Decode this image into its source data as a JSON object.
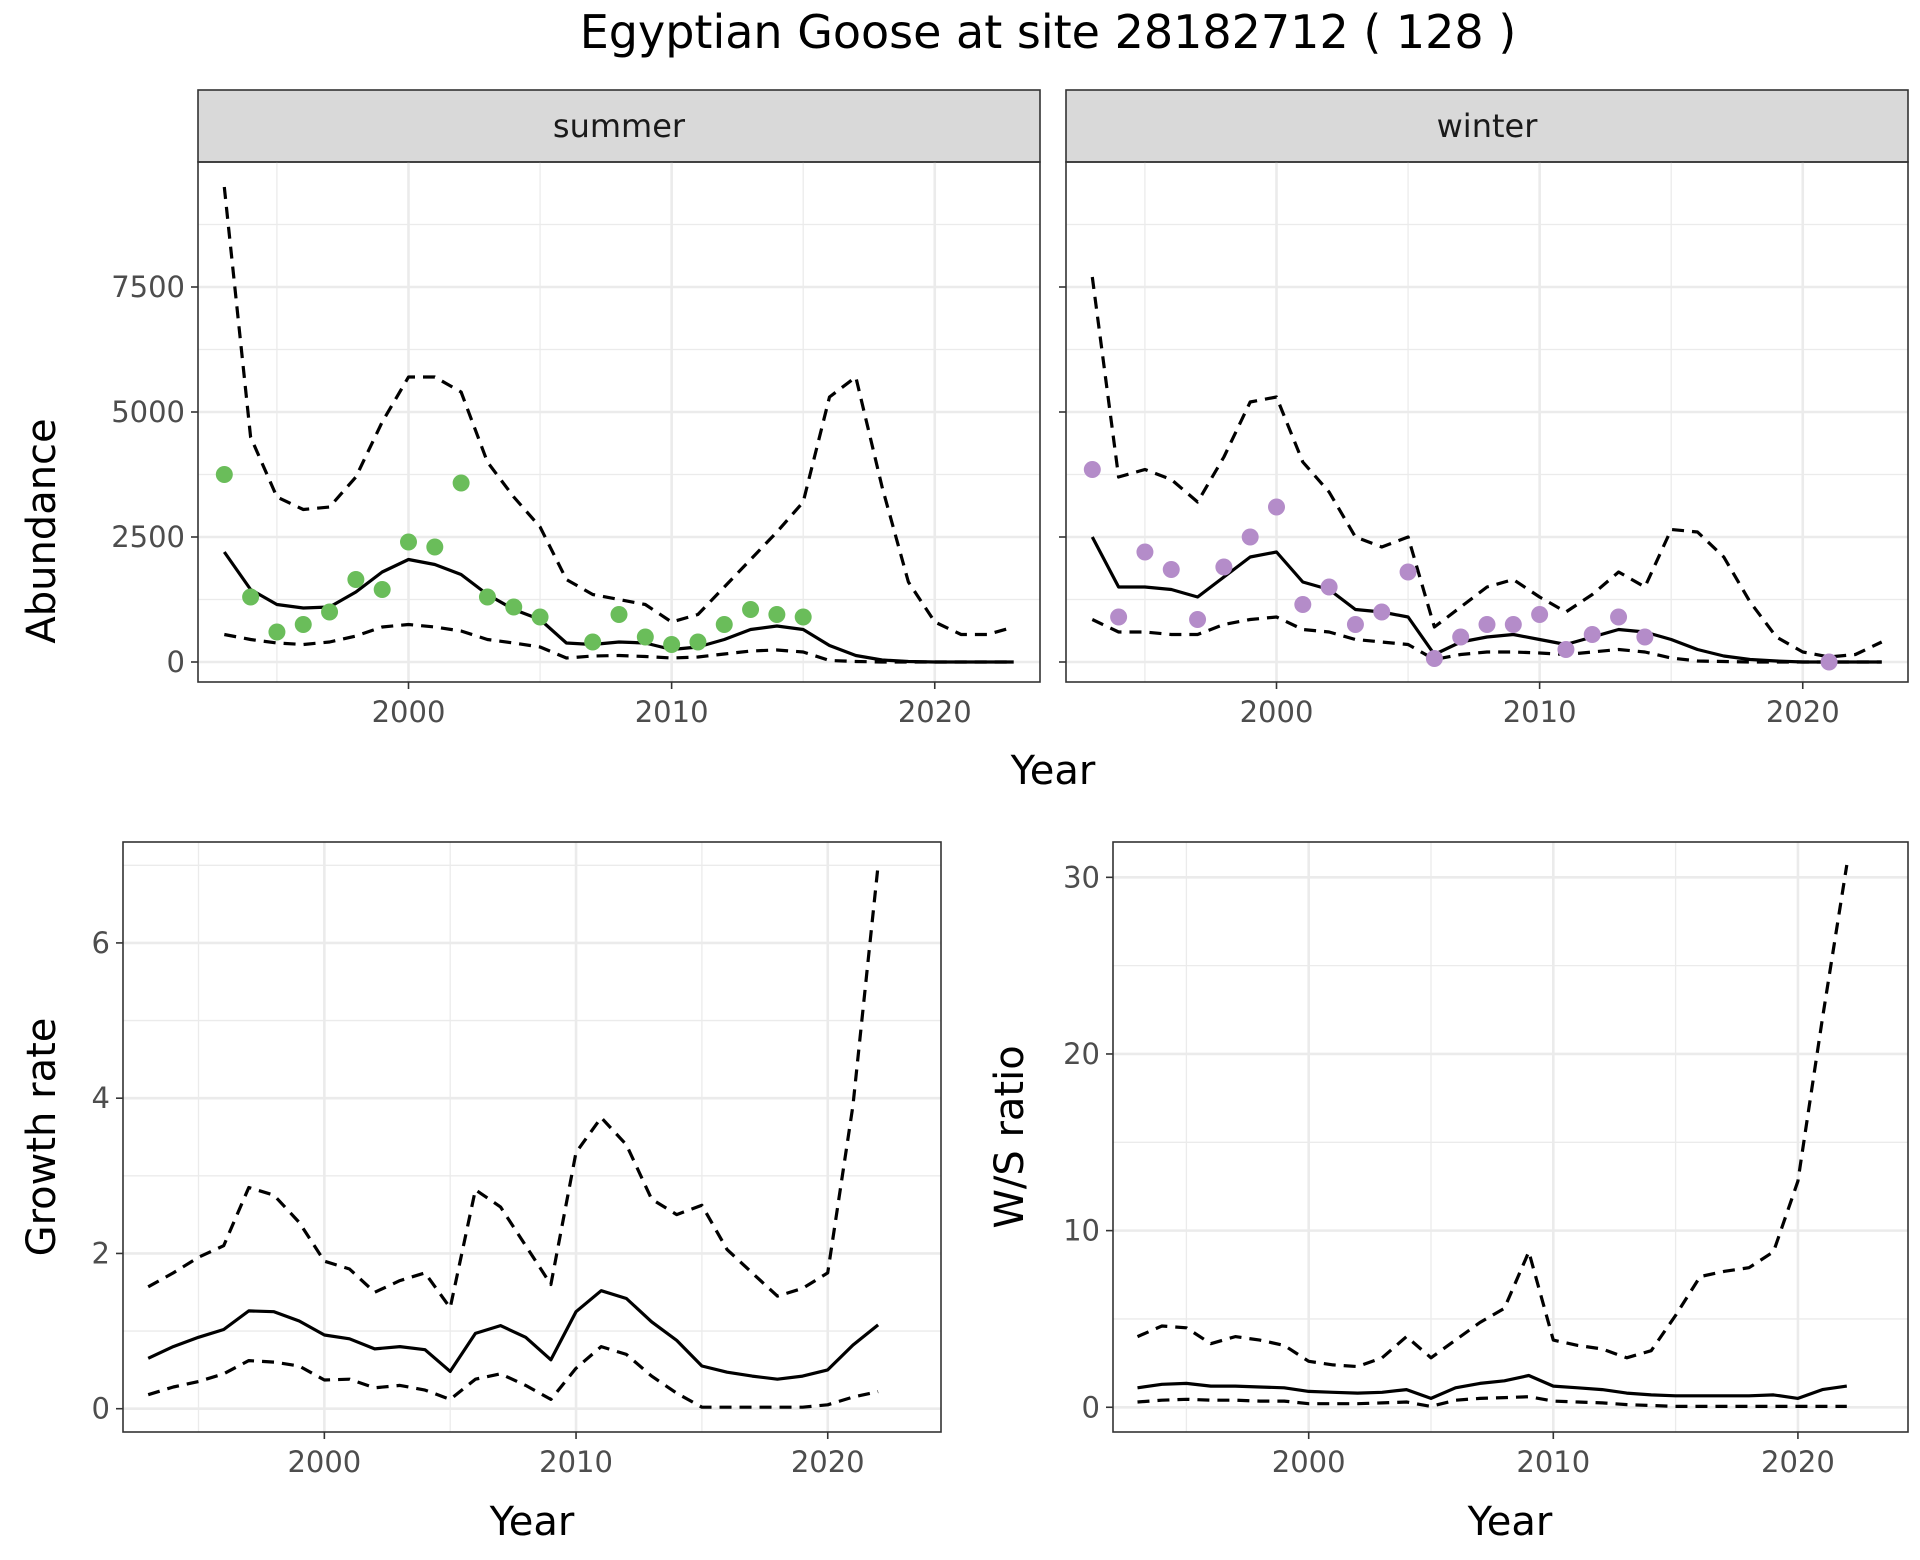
{
  "title": "Egyptian Goose at site 28182712 ( 128 )",
  "colors": {
    "summer_points": "#6ABD5A",
    "winter_points": "#B48CC9",
    "line": "#000000",
    "strip": "#D9D9D9"
  },
  "chart_data": [
    {
      "type": "line",
      "panel": "summer",
      "strip_label": "summer",
      "xlabel": "",
      "ylabel": "Abundance",
      "xlim": [
        1992,
        2024
      ],
      "ylim": [
        -400,
        10000
      ],
      "x_ticks": [
        2000,
        2010,
        2020
      ],
      "y_ticks": [
        0,
        2500,
        5000,
        7500
      ],
      "y_tick_labels": [
        "0",
        "2500",
        "5000",
        "7500"
      ],
      "grid": true,
      "x": [
        1993,
        1994,
        1995,
        1996,
        1997,
        1998,
        1999,
        2000,
        2001,
        2002,
        2003,
        2004,
        2005,
        2006,
        2007,
        2008,
        2009,
        2010,
        2011,
        2012,
        2013,
        2014,
        2015,
        2016,
        2017,
        2018,
        2019,
        2020,
        2021,
        2022,
        2023
      ],
      "estimate": [
        2200,
        1450,
        1150,
        1080,
        1100,
        1400,
        1800,
        2050,
        1950,
        1750,
        1350,
        1050,
        850,
        380,
        350,
        400,
        380,
        250,
        300,
        450,
        650,
        720,
        650,
        330,
        130,
        40,
        10,
        0,
        0,
        0,
        0
      ],
      "lower": [
        550,
        450,
        380,
        350,
        400,
        520,
        700,
        750,
        700,
        620,
        450,
        380,
        300,
        80,
        120,
        130,
        110,
        80,
        100,
        160,
        220,
        240,
        200,
        30,
        10,
        0,
        0,
        0,
        0,
        0,
        0
      ],
      "upper": [
        9500,
        4500,
        3300,
        3050,
        3100,
        3700,
        4800,
        5700,
        5700,
        5400,
        4000,
        3300,
        2700,
        1650,
        1350,
        1250,
        1150,
        800,
        950,
        1500,
        2050,
        2600,
        3200,
        5300,
        5700,
        3500,
        1600,
        800,
        550,
        550,
        700
      ],
      "points": {
        "x": [
          1993,
          1994,
          1995,
          1996,
          1997,
          1998,
          1999,
          2000,
          2001,
          2002,
          2003,
          2004,
          2005,
          2007,
          2008,
          2009,
          2010,
          2011,
          2012,
          2013,
          2014,
          2015
        ],
        "y": [
          3750,
          1300,
          600,
          750,
          1000,
          1650,
          1450,
          2400,
          2300,
          3580,
          1300,
          1100,
          900,
          400,
          950,
          500,
          350,
          400,
          750,
          1050,
          950,
          900
        ]
      }
    },
    {
      "type": "line",
      "panel": "winter",
      "strip_label": "winter",
      "xlabel": "",
      "ylabel": "",
      "xlim": [
        1992,
        2024
      ],
      "ylim": [
        -400,
        10000
      ],
      "x_ticks": [
        2000,
        2010,
        2020
      ],
      "y_ticks": [
        0,
        2500,
        5000,
        7500
      ],
      "grid": true,
      "x": [
        1993,
        1994,
        1995,
        1996,
        1997,
        1998,
        1999,
        2000,
        2001,
        2002,
        2003,
        2004,
        2005,
        2006,
        2007,
        2008,
        2009,
        2010,
        2011,
        2012,
        2013,
        2014,
        2015,
        2016,
        2017,
        2018,
        2019,
        2020,
        2021,
        2022,
        2023
      ],
      "estimate": [
        2500,
        1500,
        1500,
        1450,
        1300,
        1700,
        2100,
        2200,
        1600,
        1450,
        1050,
        1000,
        900,
        150,
        400,
        500,
        550,
        450,
        350,
        500,
        650,
        600,
        450,
        250,
        120,
        50,
        20,
        0,
        0,
        0,
        0
      ],
      "lower": [
        850,
        600,
        600,
        550,
        550,
        750,
        850,
        900,
        650,
        600,
        450,
        400,
        350,
        50,
        150,
        200,
        200,
        180,
        150,
        200,
        250,
        200,
        80,
        20,
        10,
        0,
        0,
        0,
        0,
        0,
        0
      ],
      "upper": [
        7700,
        3700,
        3850,
        3650,
        3200,
        4100,
        5200,
        5300,
        4000,
        3400,
        2500,
        2300,
        2500,
        700,
        1100,
        1500,
        1650,
        1300,
        1000,
        1350,
        1800,
        1500,
        2650,
        2600,
        2100,
        1200,
        500,
        200,
        100,
        150,
        400
      ],
      "points": {
        "x": [
          1993,
          1994,
          1995,
          1996,
          1997,
          1998,
          1999,
          2000,
          2001,
          2002,
          2003,
          2004,
          2005,
          2006,
          2007,
          2008,
          2009,
          2010,
          2011,
          2012,
          2013,
          2014,
          2021
        ],
        "y": [
          3850,
          900,
          2200,
          1850,
          850,
          1900,
          2500,
          3100,
          1150,
          1500,
          750,
          1000,
          1800,
          70,
          500,
          750,
          750,
          950,
          250,
          550,
          900,
          500,
          0
        ]
      }
    },
    {
      "type": "line",
      "panel": "growth",
      "xlabel": "Year",
      "ylabel": "Growth rate",
      "xlim": [
        1992,
        2024.5
      ],
      "ylim": [
        -0.3,
        7.3
      ],
      "x_ticks": [
        2000,
        2010,
        2020
      ],
      "y_ticks": [
        0,
        2,
        4,
        6
      ],
      "grid": true,
      "x": [
        1993,
        1994,
        1995,
        1996,
        1997,
        1998,
        1999,
        2000,
        2001,
        2002,
        2003,
        2004,
        2005,
        2006,
        2007,
        2008,
        2009,
        2010,
        2011,
        2012,
        2013,
        2014,
        2015,
        2016,
        2017,
        2018,
        2019,
        2020,
        2021,
        2022
      ],
      "estimate": [
        0.65,
        0.8,
        0.92,
        1.02,
        1.26,
        1.25,
        1.13,
        0.95,
        0.9,
        0.77,
        0.8,
        0.76,
        0.48,
        0.97,
        1.07,
        0.92,
        0.63,
        1.25,
        1.52,
        1.42,
        1.12,
        0.88,
        0.55,
        0.47,
        0.42,
        0.38,
        0.42,
        0.5,
        0.82,
        1.08
      ],
      "lower": [
        0.18,
        0.28,
        0.35,
        0.45,
        0.62,
        0.6,
        0.55,
        0.37,
        0.38,
        0.27,
        0.3,
        0.24,
        0.12,
        0.38,
        0.45,
        0.3,
        0.12,
        0.52,
        0.8,
        0.7,
        0.42,
        0.2,
        0.02,
        0.02,
        0.02,
        0.02,
        0.02,
        0.05,
        0.15,
        0.22
      ],
      "upper": [
        1.57,
        1.75,
        1.95,
        2.1,
        2.85,
        2.75,
        2.4,
        1.9,
        1.8,
        1.5,
        1.65,
        1.75,
        1.3,
        2.82,
        2.6,
        2.1,
        1.6,
        3.3,
        3.75,
        3.4,
        2.7,
        2.5,
        2.62,
        2.05,
        1.75,
        1.45,
        1.55,
        1.75,
        3.9,
        7.0
      ]
    },
    {
      "type": "line",
      "panel": "ratio",
      "xlabel": "Year",
      "ylabel": "W/S ratio",
      "xlim": [
        1992,
        2024.5
      ],
      "ylim": [
        -1.4,
        32
      ],
      "x_ticks": [
        2000,
        2010,
        2020
      ],
      "y_ticks": [
        0,
        10,
        20,
        30
      ],
      "grid": true,
      "x": [
        1993,
        1994,
        1995,
        1996,
        1997,
        1998,
        1999,
        2000,
        2001,
        2002,
        2003,
        2004,
        2005,
        2006,
        2007,
        2008,
        2009,
        2010,
        2011,
        2012,
        2013,
        2014,
        2015,
        2016,
        2017,
        2018,
        2019,
        2020,
        2021,
        2022
      ],
      "estimate": [
        1.1,
        1.3,
        1.35,
        1.2,
        1.2,
        1.15,
        1.1,
        0.9,
        0.85,
        0.8,
        0.85,
        1.0,
        0.5,
        1.1,
        1.35,
        1.5,
        1.8,
        1.2,
        1.1,
        1.0,
        0.8,
        0.7,
        0.65,
        0.65,
        0.65,
        0.65,
        0.7,
        0.5,
        1.0,
        1.2
      ],
      "lower": [
        0.3,
        0.4,
        0.45,
        0.4,
        0.4,
        0.35,
        0.35,
        0.2,
        0.2,
        0.2,
        0.25,
        0.3,
        0.05,
        0.4,
        0.5,
        0.55,
        0.6,
        0.35,
        0.3,
        0.25,
        0.15,
        0.1,
        0.05,
        0.05,
        0.05,
        0.05,
        0.05,
        0.05,
        0.05,
        0.05
      ],
      "upper": [
        4.0,
        4.6,
        4.5,
        3.6,
        4.0,
        3.8,
        3.5,
        2.6,
        2.4,
        2.3,
        2.8,
        4.0,
        2.8,
        3.8,
        4.8,
        5.6,
        8.8,
        3.8,
        3.5,
        3.3,
        2.8,
        3.2,
        5.2,
        7.4,
        7.7,
        7.9,
        8.8,
        12.8,
        22.0,
        30.7
      ]
    }
  ]
}
